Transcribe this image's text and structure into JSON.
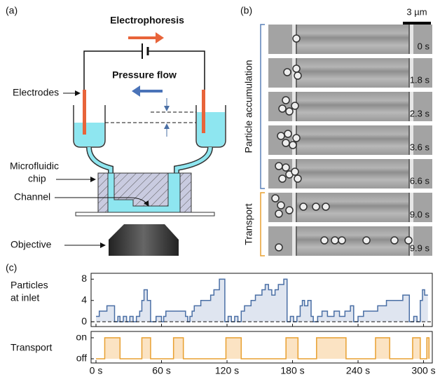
{
  "panel_a": {
    "label": "(a)",
    "electrophoresis": "Electrophoresis",
    "pressure_flow": "Pressure flow",
    "electrodes": "Electrodes",
    "chip": [
      "Microfluidic",
      "chip"
    ],
    "channel": "Channel",
    "objective": "Objective"
  },
  "panel_b": {
    "label": "(b)",
    "scale_bar": "3 µm",
    "groups": [
      {
        "name": "Particle accumulation",
        "frames": [
          "0 s",
          "1.8 s",
          "2.3 s",
          "3.6 s",
          "6.6 s"
        ]
      },
      {
        "name": "Transport",
        "frames": [
          "9.0 s",
          "9.9 s"
        ]
      }
    ]
  },
  "panel_c": {
    "label": "(c)"
  },
  "chart_data": [
    {
      "type": "line",
      "drawstyle": "steps-post",
      "fill": true,
      "ylabel": [
        "Particles",
        "at inlet"
      ],
      "x": [
        0,
        3,
        6,
        10,
        14,
        17,
        20,
        22,
        25,
        28,
        31,
        34,
        37,
        40,
        42,
        44,
        47,
        50,
        55,
        60,
        62,
        64,
        67,
        72,
        77,
        82,
        84,
        86,
        88,
        90,
        93,
        96,
        99,
        102,
        105,
        108,
        111,
        113,
        117,
        118,
        121,
        124,
        127,
        130,
        133,
        136,
        139,
        142,
        146,
        149,
        152,
        155,
        158,
        161,
        164,
        167,
        170,
        172,
        175,
        178,
        181,
        184,
        187,
        189,
        191,
        194,
        197,
        199,
        203,
        207,
        212,
        218,
        223,
        228,
        233,
        236,
        240,
        245,
        250,
        255,
        258,
        262,
        266,
        270,
        274,
        278,
        281,
        285,
        287,
        291,
        294,
        297,
        299,
        301,
        304
      ],
      "series": [
        {
          "color": "#4a6fa5",
          "fill_color": "#dfe5f0",
          "values": [
            1,
            2,
            2,
            3,
            3,
            0,
            1,
            0,
            1,
            0,
            1,
            0,
            1,
            2,
            4,
            6,
            4,
            0,
            1,
            0,
            1,
            2,
            2,
            2,
            2,
            1,
            0,
            1,
            2,
            3,
            3,
            4,
            4,
            4,
            5,
            6,
            6,
            8,
            8,
            0,
            1,
            0,
            1,
            0,
            2,
            3,
            3,
            4,
            5,
            5,
            6,
            7,
            6,
            5,
            6,
            7,
            7,
            8,
            0,
            1,
            0,
            1,
            3,
            4,
            3,
            4,
            1,
            0,
            1,
            2,
            1,
            2,
            1,
            2,
            3,
            0,
            1,
            2,
            2,
            2,
            3,
            3,
            4,
            4,
            4,
            4,
            5,
            5,
            0,
            1,
            0,
            4,
            6,
            5,
            5
          ]
        }
      ],
      "xlim": [
        -4.5,
        308
      ],
      "ylim": [
        -0.9,
        9.1
      ],
      "yticks": [
        0,
        4,
        8
      ]
    },
    {
      "type": "line",
      "drawstyle": "steps-post",
      "fill": true,
      "ylabel": [
        "Transport"
      ],
      "x": [
        0,
        8,
        22,
        42,
        50,
        71,
        80,
        119,
        133,
        174,
        185,
        202,
        229,
        256,
        269,
        290,
        297,
        303,
        305
      ],
      "series": [
        {
          "color": "#e8a030",
          "fill_color": "#fbe3c3",
          "values": [
            0,
            1,
            0,
            1,
            0,
            1,
            0,
            1,
            0,
            1,
            0,
            1,
            0,
            1,
            0,
            1,
            0,
            1,
            0
          ]
        }
      ],
      "xlim": [
        -4.5,
        308
      ],
      "ylim": [
        -0.2,
        1.3
      ],
      "yticks": [
        {
          "value": 0,
          "label": "off"
        },
        {
          "value": 1,
          "label": "on"
        }
      ],
      "xticks": [
        {
          "value": 0,
          "label": "0 s"
        },
        {
          "value": 60,
          "label": "60 s"
        },
        {
          "value": 120,
          "label": "120 s"
        },
        {
          "value": 180,
          "label": "180 s"
        },
        {
          "value": 240,
          "label": "240 s"
        },
        {
          "value": 300,
          "label": "300 s"
        }
      ]
    }
  ]
}
